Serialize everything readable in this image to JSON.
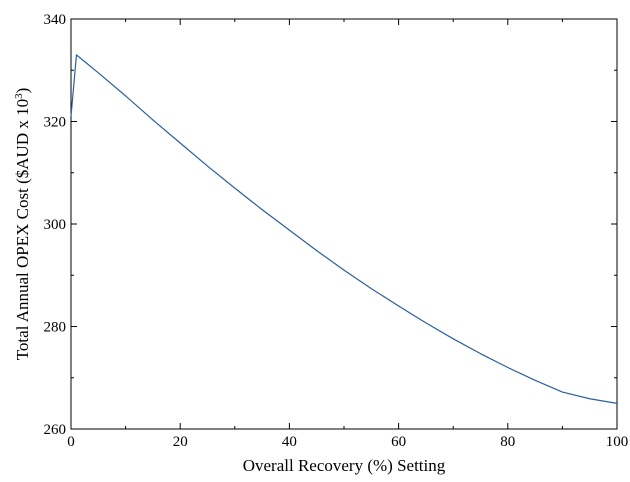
{
  "chart_data": {
    "type": "line",
    "title": "",
    "xlabel": "Overall Recovery (%) Setting",
    "ylabel_main": "Total Annual OPEX Cost ($AUD x 10",
    "ylabel_sup": "3",
    "ylabel_close": ")",
    "xlim": [
      0,
      100
    ],
    "ylim": [
      260,
      340
    ],
    "xticks": [
      0,
      20,
      40,
      60,
      80,
      100
    ],
    "yticks": [
      260,
      280,
      300,
      320,
      340
    ],
    "x_minor_step": 10,
    "y_minor_step": 10,
    "grid": false,
    "series": [
      {
        "color": "#2a5f9e",
        "x": [
          0,
          1,
          5,
          10,
          15,
          20,
          25,
          30,
          35,
          40,
          45,
          50,
          55,
          60,
          65,
          70,
          75,
          80,
          85,
          90,
          95,
          100
        ],
        "y": [
          321,
          333,
          329.5,
          325,
          320.3,
          315.8,
          311.3,
          307,
          302.8,
          298.8,
          294.8,
          291.0,
          287.4,
          284.0,
          280.7,
          277.6,
          274.7,
          272.0,
          269.5,
          267.2,
          265.9,
          265.0
        ]
      }
    ]
  }
}
